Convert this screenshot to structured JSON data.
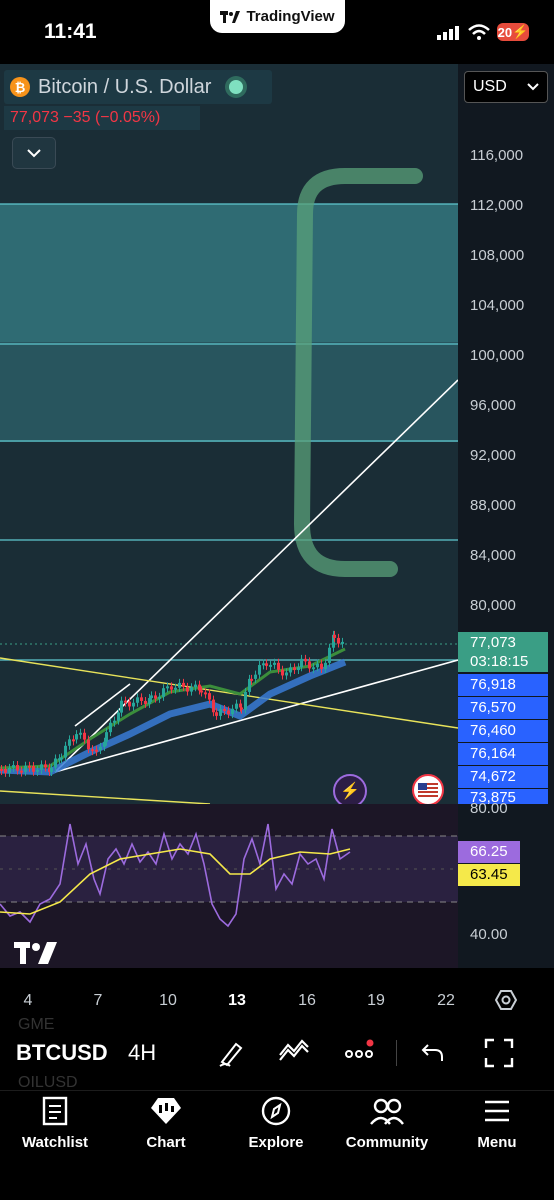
{
  "status_bar": {
    "time": "11:41",
    "app_pill": "TradingView",
    "battery": "20"
  },
  "header": {
    "symbol_title": "Bitcoin / U.S. Dollar",
    "price_change": "77,073 −35 (−0.05%)",
    "currency": "USD"
  },
  "price_axis": {
    "ticks": [
      "116,000",
      "112,000",
      "108,000",
      "104,000",
      "100,000",
      "96,000",
      "92,000",
      "88,000",
      "84,000",
      "80,000"
    ],
    "last_price": "77,073",
    "countdown": "03:18:15",
    "levels": [
      "76,918",
      "76,570",
      "76,460",
      "76,164",
      "74,672",
      "73,875"
    ]
  },
  "rsi": {
    "top_tick": "80.00",
    "bottom_tick": "40.00",
    "value1": "66.25",
    "value2": "63.45"
  },
  "date_axis": [
    "4",
    "7",
    "10",
    "13",
    "16",
    "19",
    "22"
  ],
  "toolbar": {
    "symbol": "BTCUSD",
    "interval": "4H",
    "ghost_top": "GME",
    "ghost_bottom": "OILUSD"
  },
  "nav": [
    {
      "label": "Watchlist",
      "icon": "book-icon"
    },
    {
      "label": "Chart",
      "icon": "chart-icon"
    },
    {
      "label": "Explore",
      "icon": "compass-icon"
    },
    {
      "label": "Community",
      "icon": "people-icon"
    },
    {
      "label": "Menu",
      "icon": "menu-icon"
    }
  ],
  "colors": {
    "up": "#26a69a",
    "down": "#f23645",
    "zone": "#2f6b73",
    "level_tag": "#2962ff",
    "price_tag": "#3a9e85",
    "rsi_line": "#9c6bde",
    "rsi_ma": "#f5e94a"
  }
}
